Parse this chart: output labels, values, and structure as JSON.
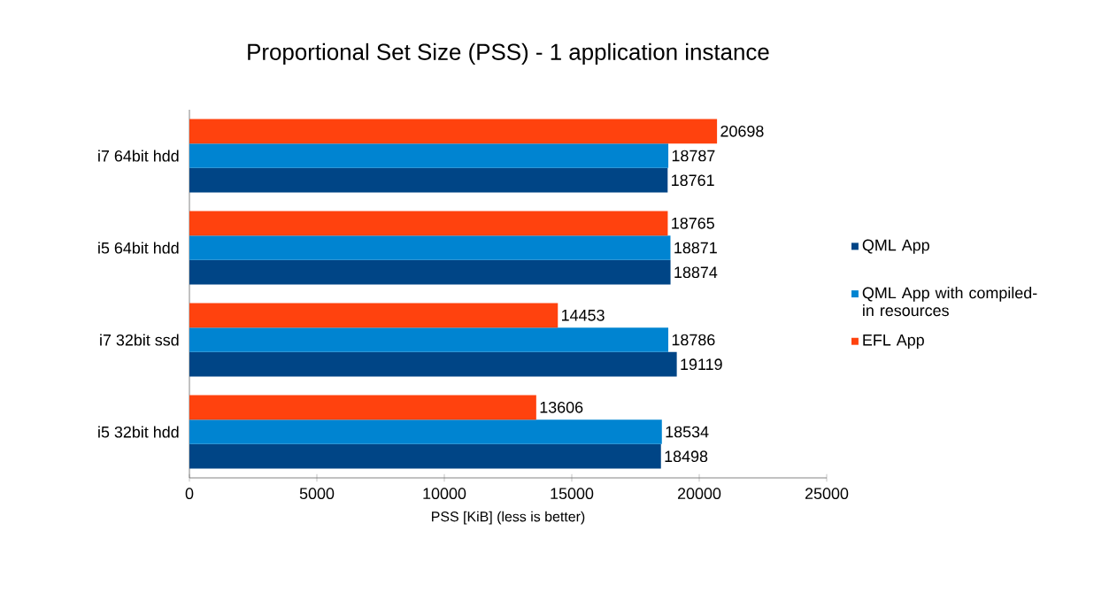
{
  "chart_data": {
    "type": "bar",
    "orientation": "horizontal",
    "title": "Proportional Set Size (PSS) - 1 application instance",
    "xlabel": "PSS [KiB] (less is better)",
    "categories": [
      "i7 64bit hdd",
      "i5 64bit hdd",
      "i7 32bit ssd",
      "i5 32bit hdd"
    ],
    "series": [
      {
        "name": "QML App",
        "color": "#004586",
        "values": [
          18761,
          18874,
          19119,
          18498
        ]
      },
      {
        "name": "QML App with compiled-in resources",
        "color": "#0084d1",
        "values": [
          18787,
          18871,
          18786,
          18534
        ]
      },
      {
        "name": "EFL App",
        "color": "#ff420e",
        "values": [
          20698,
          18765,
          14453,
          13606
        ]
      }
    ],
    "xlim": [
      0,
      25000
    ],
    "xticks": [
      0,
      5000,
      10000,
      15000,
      20000,
      25000
    ],
    "data_labels": true,
    "legend": "right",
    "grid": false
  }
}
